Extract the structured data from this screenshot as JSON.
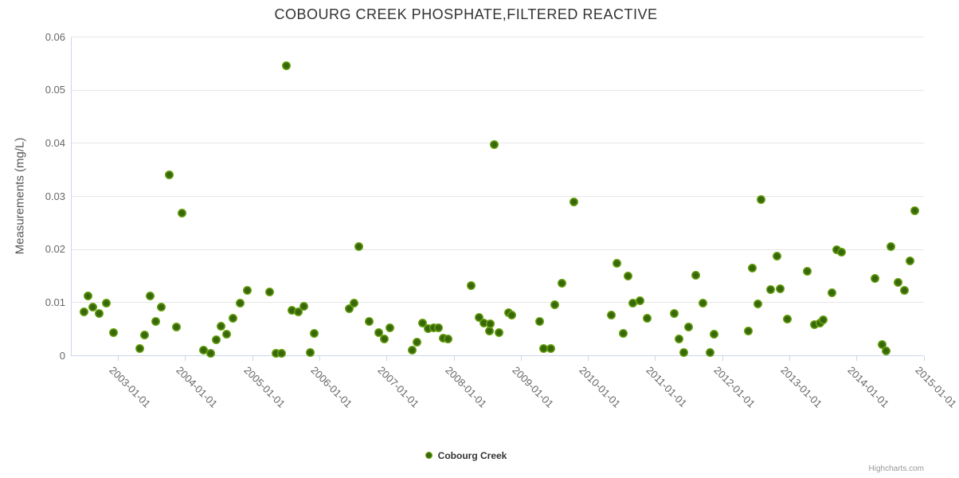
{
  "chart": {
    "title": "COBOURG CREEK PHOSPHATE,FILTERED REACTIVE",
    "credits": "Highcharts.com",
    "legend": {
      "series_label": "Cobourg Creek"
    },
    "y_axis": {
      "title": "Measurements (mg/L)",
      "tick_labels": [
        "0",
        "0.01",
        "0.02",
        "0.03",
        "0.04",
        "0.05",
        "0.06"
      ]
    },
    "x_axis": {
      "tick_labels": [
        "2003-01-01",
        "2004-01-01",
        "2005-01-01",
        "2006-01-01",
        "2007-01-01",
        "2008-01-01",
        "2009-01-01",
        "2010-01-01",
        "2011-01-01",
        "2012-01-01",
        "2013-01-01",
        "2014-01-01",
        "2015-01-01"
      ]
    },
    "colors": {
      "marker_center": "#38660a",
      "marker_edge": "#7cb51e",
      "grid_line": "#e6e6e6",
      "axis_line": "#ccd6eb",
      "tick_label": "#666666",
      "title_text": "#333333",
      "credits_text": "#999999"
    }
  },
  "chart_data": {
    "type": "scatter",
    "title": "COBOURG CREEK PHOSPHATE,FILTERED REACTIVE",
    "xlabel": "",
    "ylabel": "Measurements (mg/L)",
    "ylim": [
      0,
      0.06
    ],
    "y_ticks": [
      0,
      0.01,
      0.02,
      0.03,
      0.04,
      0.05,
      0.06
    ],
    "x_tick_years": [
      2003,
      2004,
      2005,
      2006,
      2007,
      2008,
      2009,
      2010,
      2011,
      2012,
      2013,
      2014,
      2015
    ],
    "xlim_years": [
      2002.3,
      2015.02
    ],
    "grid": true,
    "legend_position": "bottom-center",
    "series": [
      {
        "name": "Cobourg Creek",
        "color": "#6fac12",
        "points": [
          [
            2002.49,
            0.0082
          ],
          [
            2002.55,
            0.0112
          ],
          [
            2002.63,
            0.0092
          ],
          [
            2002.72,
            0.0079
          ],
          [
            2002.83,
            0.0099
          ],
          [
            2002.93,
            0.0043
          ],
          [
            2003.33,
            0.0013
          ],
          [
            2003.4,
            0.0039
          ],
          [
            2003.48,
            0.0113
          ],
          [
            2003.56,
            0.0064
          ],
          [
            2003.65,
            0.0092
          ],
          [
            2003.77,
            0.0341
          ],
          [
            2003.87,
            0.0054
          ],
          [
            2003.95,
            0.0269
          ],
          [
            2004.28,
            0.0011
          ],
          [
            2004.38,
            0.0004
          ],
          [
            2004.47,
            0.003
          ],
          [
            2004.54,
            0.0056
          ],
          [
            2004.62,
            0.004
          ],
          [
            2004.71,
            0.007
          ],
          [
            2004.82,
            0.0099
          ],
          [
            2004.93,
            0.0123
          ],
          [
            2005.26,
            0.012
          ],
          [
            2005.35,
            0.0005
          ],
          [
            2005.44,
            0.0005
          ],
          [
            2005.51,
            0.0546
          ],
          [
            2005.59,
            0.0086
          ],
          [
            2005.69,
            0.0083
          ],
          [
            2005.77,
            0.0093
          ],
          [
            2005.86,
            0.0006
          ],
          [
            2005.93,
            0.0042
          ],
          [
            2006.45,
            0.0088
          ],
          [
            2006.52,
            0.0099
          ],
          [
            2006.59,
            0.0206
          ],
          [
            2006.74,
            0.0064
          ],
          [
            2006.89,
            0.0043
          ],
          [
            2006.97,
            0.0032
          ],
          [
            2007.05,
            0.0053
          ],
          [
            2007.38,
            0.0011
          ],
          [
            2007.46,
            0.0026
          ],
          [
            2007.54,
            0.0061
          ],
          [
            2007.62,
            0.0051
          ],
          [
            2007.7,
            0.0053
          ],
          [
            2007.77,
            0.0052
          ],
          [
            2007.85,
            0.0033
          ],
          [
            2007.92,
            0.0031
          ],
          [
            2008.26,
            0.0132
          ],
          [
            2008.38,
            0.0072
          ],
          [
            2008.45,
            0.0061
          ],
          [
            2008.53,
            0.0046
          ],
          [
            2008.55,
            0.006
          ],
          [
            2008.6,
            0.0397
          ],
          [
            2008.68,
            0.0044
          ],
          [
            2008.82,
            0.0081
          ],
          [
            2008.87,
            0.0076
          ],
          [
            2009.28,
            0.0064
          ],
          [
            2009.34,
            0.0014
          ],
          [
            2009.45,
            0.0013
          ],
          [
            2009.51,
            0.0096
          ],
          [
            2009.61,
            0.0137
          ],
          [
            2009.79,
            0.029
          ],
          [
            2010.35,
            0.0077
          ],
          [
            2010.43,
            0.0174
          ],
          [
            2010.53,
            0.0042
          ],
          [
            2010.6,
            0.015
          ],
          [
            2010.67,
            0.0099
          ],
          [
            2010.77,
            0.0103
          ],
          [
            2010.88,
            0.0071
          ],
          [
            2011.29,
            0.008
          ],
          [
            2011.36,
            0.0031
          ],
          [
            2011.43,
            0.0006
          ],
          [
            2011.5,
            0.0054
          ],
          [
            2011.61,
            0.0152
          ],
          [
            2011.71,
            0.0099
          ],
          [
            2011.82,
            0.0006
          ],
          [
            2011.88,
            0.004
          ],
          [
            2012.39,
            0.0046
          ],
          [
            2012.45,
            0.0165
          ],
          [
            2012.53,
            0.0097
          ],
          [
            2012.58,
            0.0294
          ],
          [
            2012.72,
            0.0125
          ],
          [
            2012.82,
            0.0187
          ],
          [
            2012.86,
            0.0126
          ],
          [
            2012.97,
            0.0069
          ],
          [
            2013.27,
            0.0159
          ],
          [
            2013.37,
            0.0059
          ],
          [
            2013.46,
            0.0062
          ],
          [
            2013.51,
            0.0068
          ],
          [
            2013.63,
            0.0119
          ],
          [
            2013.71,
            0.0199
          ],
          [
            2013.78,
            0.0195
          ],
          [
            2014.28,
            0.0146
          ],
          [
            2014.38,
            0.0021
          ],
          [
            2014.44,
            0.0009
          ],
          [
            2014.51,
            0.0206
          ],
          [
            2014.62,
            0.0138
          ],
          [
            2014.72,
            0.0123
          ],
          [
            2014.8,
            0.0179
          ],
          [
            2014.87,
            0.0273
          ]
        ]
      }
    ]
  }
}
